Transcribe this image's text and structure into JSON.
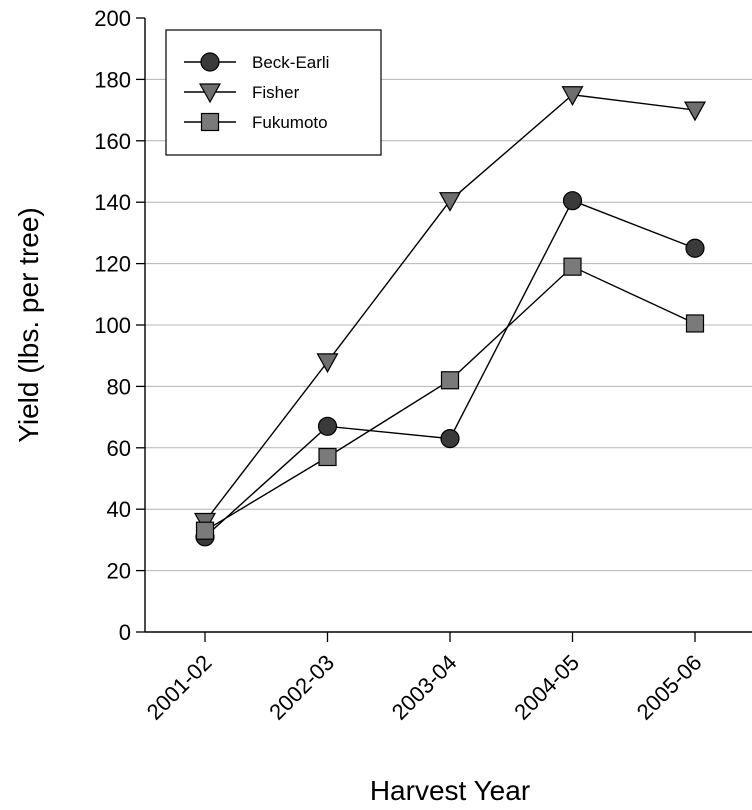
{
  "chart_data": {
    "type": "line",
    "title": "",
    "xlabel": "Harvest Year",
    "ylabel": "Yield (lbs. per tree)",
    "categories": [
      "2001-02",
      "2002-03",
      "2003-04",
      "2004-05",
      "2005-06"
    ],
    "ylim": [
      0,
      200
    ],
    "yticks": [
      "0",
      "20",
      "40",
      "60",
      "80",
      "100",
      "120",
      "140",
      "160",
      "180",
      "200"
    ],
    "grid": "horizontal",
    "legend_position": "top-left",
    "series": [
      {
        "name": "Beck-Earli",
        "marker": "circle",
        "color": "#3a3a3a",
        "values": [
          31,
          67,
          63,
          140.5,
          125
        ]
      },
      {
        "name": "Fisher",
        "marker": "triangle-down",
        "color": "#6e6e6e",
        "values": [
          36,
          88,
          140.5,
          175,
          170
        ]
      },
      {
        "name": "Fukumoto",
        "marker": "square",
        "color": "#7a7a7a",
        "values": [
          33,
          57,
          82,
          119,
          100.5
        ]
      }
    ]
  }
}
